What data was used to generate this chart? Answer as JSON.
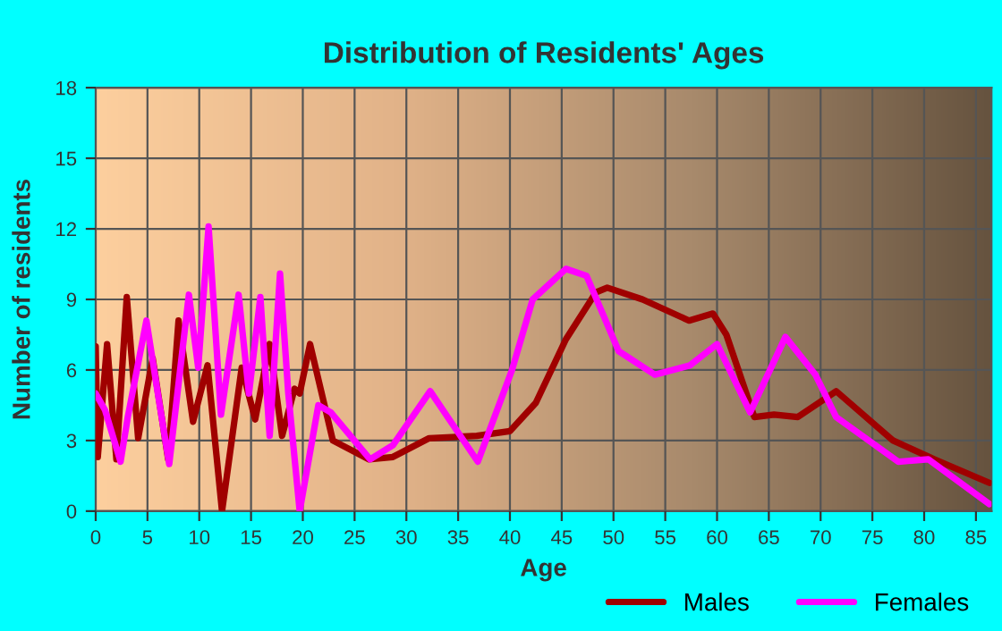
{
  "chart_data": {
    "type": "line",
    "title": "Distribution of Residents' Ages",
    "xlabel": "Age",
    "ylabel": "Number of residents",
    "xlim": [
      0,
      86.5
    ],
    "ylim": [
      0,
      18
    ],
    "xticks": [
      0,
      5,
      10,
      15,
      20,
      25,
      30,
      35,
      40,
      45,
      50,
      55,
      60,
      65,
      70,
      75,
      80,
      85
    ],
    "yticks": [
      0,
      3,
      6,
      9,
      12,
      15,
      18
    ],
    "grid": true,
    "legend": "bottom right",
    "line_style": "solid",
    "marker": "none",
    "series": [
      {
        "name": "Males",
        "color": "#a00000",
        "x": [
          0,
          0.2,
          1.1,
          2.0,
          3.0,
          4.1,
          5.5,
          7.0,
          8.0,
          9.4,
          10.8,
          12.2,
          14.1,
          15.4,
          16.8,
          18.0,
          19.2,
          19.7,
          20.7,
          22.9,
          26.4,
          28.7,
          32.2,
          36.8,
          40,
          42.5,
          45.4,
          48.3,
          49.4,
          52.8,
          57.3,
          59.6,
          60.9,
          63.6,
          65.5,
          67.8,
          71.5,
          77,
          81,
          86.3
        ],
        "values": [
          7.0,
          2.3,
          7.1,
          2.2,
          9.1,
          3.1,
          6.5,
          2.2,
          8.1,
          3.8,
          6.2,
          0,
          6.1,
          3.9,
          7.1,
          3.2,
          5.2,
          5.0,
          7.1,
          3.0,
          2.2,
          2.3,
          3.1,
          3.2,
          3.4,
          4.6,
          7.3,
          9.3,
          9.5,
          9.0,
          8.1,
          8.4,
          7.5,
          4.0,
          4.1,
          4.0,
          5.1,
          3.0,
          2.2,
          1.2
        ]
      },
      {
        "name": "Females",
        "color": "#ff00ff",
        "x": [
          0,
          0.9,
          2.4,
          3.1,
          4.9,
          6.0,
          7.1,
          9.0,
          9.9,
          10.9,
          12.1,
          13.8,
          14.8,
          15.9,
          16.8,
          17.8,
          18.6,
          19.7,
          21.5,
          22.7,
          26.5,
          28.7,
          32.3,
          36.9,
          40.2,
          42.2,
          45.4,
          47.4,
          50.5,
          54,
          57.4,
          60,
          63.2,
          66.6,
          69.5,
          71.5,
          77.5,
          80.4,
          86.3
        ],
        "values": [
          5.0,
          4.3,
          2.1,
          4.0,
          8.1,
          5.0,
          2.0,
          9.2,
          6.1,
          12.1,
          4.1,
          9.2,
          5.0,
          9.1,
          3.2,
          10.1,
          5.0,
          0,
          4.5,
          4.2,
          2.2,
          2.8,
          5.1,
          2.1,
          6.0,
          9.0,
          10.3,
          10.0,
          6.8,
          5.8,
          6.2,
          7.1,
          4.2,
          7.4,
          5.8,
          4.0,
          2.1,
          2.2,
          0.3
        ]
      }
    ]
  }
}
